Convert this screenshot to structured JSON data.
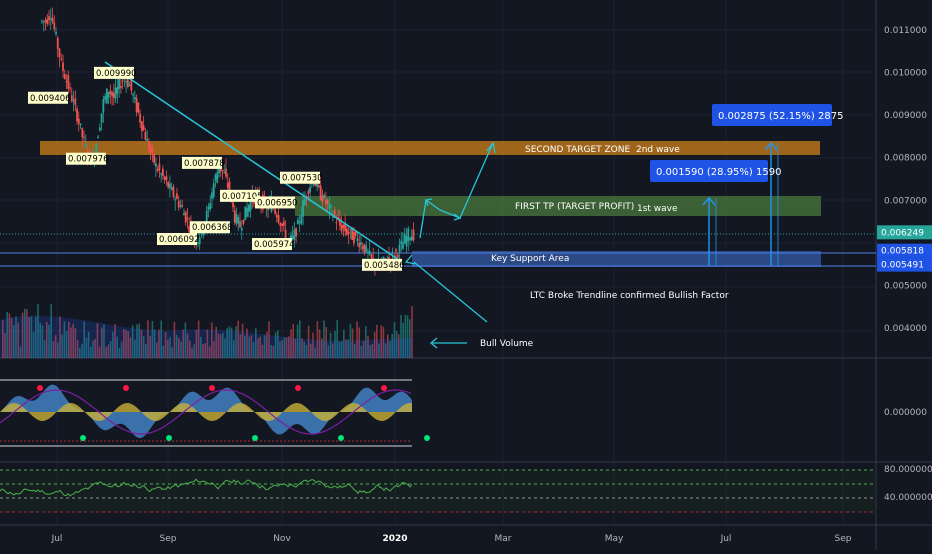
{
  "chart_data": {
    "type": "line",
    "title": "",
    "price_axis": {
      "labels": [
        "0.011000",
        "0.010000",
        "0.009000",
        "0.008000",
        "0.007000",
        "0.005000",
        "0.004000"
      ],
      "label_values": [
        0.011,
        0.01,
        0.009,
        0.008,
        0.007,
        0.005,
        0.004
      ],
      "badges": [
        {
          "text": "0.006249",
          "value": 0.006249,
          "color": "#26a69a"
        },
        {
          "text": "0.005818",
          "value": 0.005818,
          "color": "#1e53e5"
        },
        {
          "text": "0.005491",
          "value": 0.005491,
          "color": "#1e53e5"
        }
      ],
      "ylim": [
        0.0033,
        0.0117
      ]
    },
    "osc_axis": {
      "labels": [
        "0.000000"
      ]
    },
    "rsi_axis": {
      "labels": [
        "80.000000",
        "40.000000"
      ],
      "values": [
        80,
        40
      ],
      "ylim": [
        0,
        100
      ]
    },
    "time_axis": {
      "labels": [
        "Jul",
        "Sep",
        "Nov",
        "2020",
        "Mar",
        "May",
        "Jul",
        "Sep"
      ]
    },
    "price_labels": [
      {
        "text": "0.009406",
        "value": 0.009406
      },
      {
        "text": "0.009990",
        "value": 0.00999
      },
      {
        "text": "0.007976",
        "value": 0.007976
      },
      {
        "text": "0.007878",
        "value": 0.007878
      },
      {
        "text": "0.007105",
        "value": 0.007105
      },
      {
        "text": "0.006950",
        "value": 0.00695
      },
      {
        "text": "0.007530",
        "value": 0.00753
      },
      {
        "text": "0.006368",
        "value": 0.006368
      },
      {
        "text": "0.006092",
        "value": 0.006092
      },
      {
        "text": "0.005974",
        "value": 0.005974
      },
      {
        "text": "0.005486",
        "value": 0.005486
      }
    ],
    "zones": [
      {
        "label": "SECOND TARGET ZONE",
        "sub": "2nd wave",
        "low": 0.00812,
        "high": 0.00825,
        "color": "#b8731a"
      },
      {
        "label": "FIRST TP (TARGET PROFIT)",
        "sub": "1st wave",
        "low": 0.0068,
        "high": 0.00702,
        "color": "#4a7a3c"
      },
      {
        "label": "Key Support Area",
        "sub": "",
        "low": 0.00549,
        "high": 0.00582,
        "color": "#2f4f8f"
      }
    ],
    "measures": [
      {
        "text": "0.001590 (28.95%) 1590"
      },
      {
        "text": "0.002875 (52.15%) 2875"
      }
    ],
    "annotations": [
      {
        "text": "LTC Broke Trendline confirmed Bullish Factor"
      },
      {
        "text": "Bull Volume"
      }
    ],
    "close_series": [
      0.0112,
      0.0114,
      0.0108,
      0.0102,
      0.0098,
      0.0094,
      0.009,
      0.0085,
      0.0081,
      0.0079,
      0.0086,
      0.0093,
      0.0096,
      0.0094,
      0.0097,
      0.0099,
      0.0097,
      0.0093,
      0.0089,
      0.0085,
      0.0081,
      0.0078,
      0.0076,
      0.0074,
      0.0072,
      0.007,
      0.0068,
      0.0065,
      0.0062,
      0.0061,
      0.0064,
      0.0068,
      0.0074,
      0.0078,
      0.0076,
      0.0072,
      0.0066,
      0.0064,
      0.0067,
      0.007,
      0.0071,
      0.007,
      0.0068,
      0.0069,
      0.0067,
      0.0064,
      0.006,
      0.0061,
      0.0064,
      0.0069,
      0.0073,
      0.0075,
      0.0072,
      0.007,
      0.0068,
      0.0066,
      0.0064,
      0.0063,
      0.0062,
      0.0061,
      0.006,
      0.0058,
      0.0056,
      0.0055,
      0.0055,
      0.0056,
      0.0057,
      0.0058,
      0.006,
      0.0062,
      0.0062
    ]
  }
}
